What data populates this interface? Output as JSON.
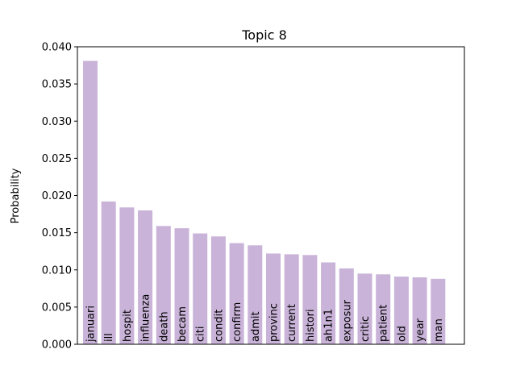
{
  "chart_data": {
    "type": "bar",
    "title": "Topic 8",
    "xlabel": "",
    "ylabel": "Probability",
    "ylim": [
      0,
      0.04
    ],
    "yticks": [
      "0.000",
      "0.005",
      "0.010",
      "0.015",
      "0.020",
      "0.025",
      "0.030",
      "0.035",
      "0.040"
    ],
    "grid": false,
    "bar_color": "#c9b3d8",
    "categories": [
      "januari",
      "ill",
      "hospit",
      "influenza",
      "death",
      "becam",
      "citi",
      "condit",
      "confirm",
      "admit",
      "provinc",
      "current",
      "histori",
      "ah1n1",
      "exposur",
      "critic",
      "patient",
      "old",
      "year",
      "man"
    ],
    "values": [
      0.0381,
      0.0192,
      0.0184,
      0.018,
      0.0159,
      0.0156,
      0.0149,
      0.0145,
      0.0136,
      0.0133,
      0.0122,
      0.0121,
      0.012,
      0.011,
      0.0102,
      0.0095,
      0.0094,
      0.0091,
      0.009,
      0.0088
    ]
  }
}
